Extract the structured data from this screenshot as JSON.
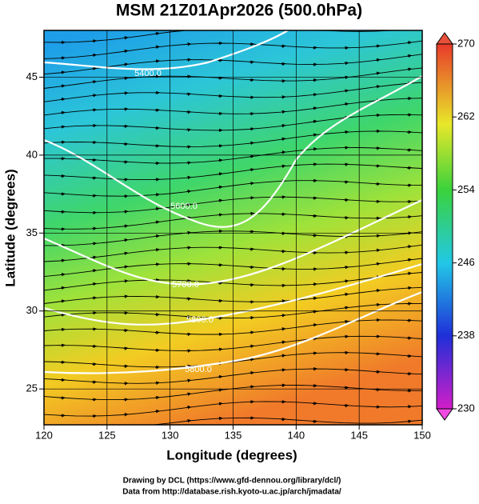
{
  "chart_data": {
    "type": "map",
    "title": "MSM 21Z01Apr2026 (500.0hPa)",
    "xlabel": "Longitude (degrees)",
    "ylabel": "Latitude  (degrees)",
    "xlim": [
      120,
      150
    ],
    "xticks": [
      120,
      125,
      130,
      135,
      140,
      145,
      150
    ],
    "ylim": [
      22.7,
      48
    ],
    "yticks": [
      25,
      30,
      35,
      40,
      45
    ],
    "grid": true,
    "colorbar": {
      "lim": [
        230,
        270
      ],
      "ticks": [
        230,
        238,
        246,
        254,
        262,
        270
      ]
    },
    "contour_labels": [
      "5400.0",
      "5600.0",
      "5700.0",
      "5800.0",
      "5800.0"
    ],
    "footer": [
      "Drawing by DCL (https://www.gfd-dennou.org/library/dcl/)",
      "Data from http://database.rish.kyoto-u.ac.jp/arch/jmadata/"
    ]
  }
}
